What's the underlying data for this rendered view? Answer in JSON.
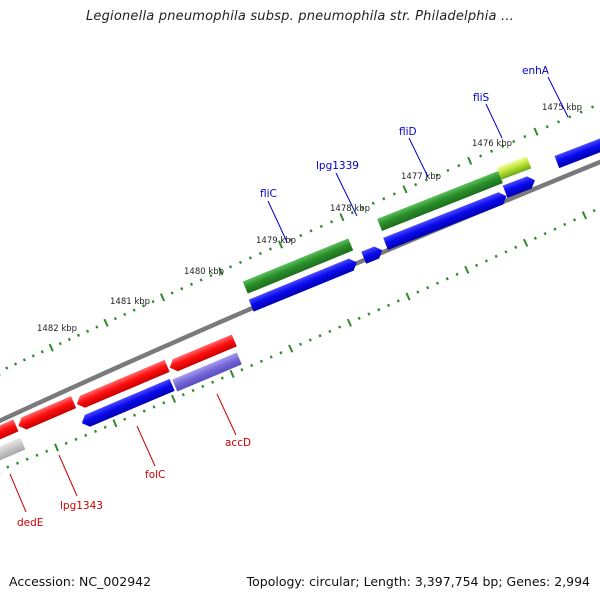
{
  "title": "Legionella pneumophila subsp. pneumophila str. Philadelphia ...",
  "footer": {
    "accession": "Accession: NC_002942",
    "summary": "Topology: circular; Length: 3,397,754 bp; Genes: 2,994"
  },
  "scale_labels": [
    "1475 kbp",
    "1476 kbp",
    "1477 kbp",
    "1478 kbp",
    "1479 kbp",
    "1480 kbp",
    "1481 kbp",
    "1482 kbp"
  ],
  "genes_forward": [
    {
      "name": "enhA",
      "label_color": "#0000cc",
      "fill": "#0000ee"
    },
    {
      "name": "fliS",
      "label_color": "#0000cc",
      "fill": "#0000ee"
    },
    {
      "name": "fliD",
      "label_color": "#0000cc",
      "fill": "#0000ee"
    },
    {
      "name": "lpg1339",
      "label_color": "#0000cc",
      "fill": "#0000ee"
    },
    {
      "name": "fliC",
      "label_color": "#0000cc",
      "fill": "#0000ee"
    }
  ],
  "genes_reverse": [
    {
      "name": "accD",
      "label_color": "#cc0000",
      "fill": "#ee0000"
    },
    {
      "name": "folC",
      "label_color": "#cc0000",
      "fill": "#ee0000"
    },
    {
      "name": "lpg1343",
      "label_color": "#cc0000",
      "fill": "#ee0000"
    },
    {
      "name": "dedE",
      "label_color": "#cc0000",
      "fill": "#ee0000"
    }
  ],
  "colors": {
    "backbone": "#808080",
    "cds_forward_feature": "#228b22",
    "cds_reverse_feature": "#ee0000",
    "gene_forward": "#0000ee",
    "gene_reverse_pseudo": "#7a6cd8",
    "scale_tick": "#2e8b2e"
  }
}
